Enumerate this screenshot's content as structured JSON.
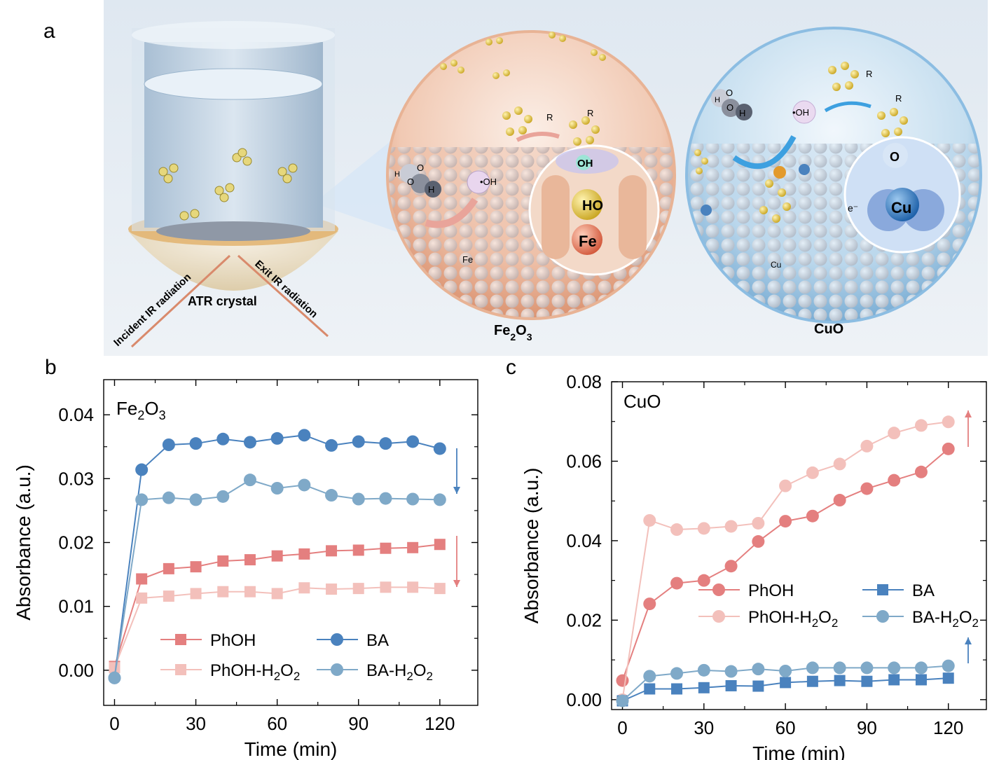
{
  "panel_labels": {
    "a": "a",
    "b": "b",
    "c": "c"
  },
  "illustration": {
    "labels": {
      "incident": "Incident IR radiation",
      "exit": "Exit IR radiation",
      "atr": "ATR crystal",
      "fe2o3_main": "Fe",
      "fe2o3_sub1": "2",
      "fe2o3_mid": "O",
      "fe2o3_sub2": "3",
      "cuo": "CuO",
      "oh_radical_left": "•OH",
      "oh_radical_right": "•OH",
      "oh_bond": "OH",
      "ho_site": "HO",
      "fe_site": "Fe",
      "fe_small": "Fe",
      "o_site": "O",
      "cu_site": "Cu",
      "cu_small": "Cu",
      "electron": "e⁻",
      "r_left": "R",
      "r_mid": "R",
      "r_right_top": "R",
      "r_right": "R",
      "h2o2_h1": "H",
      "h2o2_o1": "O",
      "h2o2_o2": "O",
      "h2o2_h2": "H"
    },
    "colors": {
      "fe_sphere": "#e8a98a",
      "cu_sphere": "#a9cfe8",
      "background": "#e6eef6",
      "cylinder": "#b9cde0",
      "hemisphere": "#ead9b6"
    }
  },
  "chart_data": [
    {
      "type": "line",
      "panel": "b",
      "title_main": "Fe",
      "title_sub1": "2",
      "title_mid": "O",
      "title_sub2": "3",
      "xlabel": "Time (min)",
      "ylabel": "Absorbance (a.u.)",
      "xlim": [
        -4,
        134
      ],
      "ylim": [
        -0.0055,
        0.0455
      ],
      "xticks": [
        0,
        30,
        60,
        90,
        120
      ],
      "xtick_labels": [
        "0",
        "30",
        "60",
        "90",
        "120"
      ],
      "yticks": [
        0,
        0.01,
        0.02,
        0.03,
        0.04
      ],
      "ytick_labels": [
        "0.00",
        "0.01",
        "0.02",
        "0.03",
        "0.04"
      ],
      "x": [
        0,
        10,
        20,
        30,
        40,
        50,
        60,
        70,
        80,
        90,
        100,
        110,
        120
      ],
      "series": [
        {
          "name": "PhOH",
          "marker": "square",
          "color": "#e47f7f",
          "values": [
            0.0006,
            0.0143,
            0.0159,
            0.0162,
            0.0171,
            0.0173,
            0.0179,
            0.0182,
            0.0187,
            0.0188,
            0.0191,
            0.0192,
            0.0197
          ]
        },
        {
          "name": "PhOH-H",
          "name_sub1": "2",
          "name_mid": "O",
          "name_sub2": "2",
          "marker": "square",
          "color": "#f3c0bb",
          "values": [
            0.0004,
            0.0113,
            0.0116,
            0.012,
            0.0123,
            0.0123,
            0.012,
            0.0129,
            0.0127,
            0.0128,
            0.013,
            0.013,
            0.0128
          ]
        },
        {
          "name": "BA",
          "marker": "circle",
          "color": "#4a82be",
          "values": [
            -0.0012,
            0.0314,
            0.0353,
            0.0355,
            0.0362,
            0.0357,
            0.0363,
            0.0368,
            0.0352,
            0.0358,
            0.0355,
            0.0358,
            0.0347
          ]
        },
        {
          "name": "BA-H",
          "name_sub1": "2",
          "name_mid": "O",
          "name_sub2": "2",
          "marker": "circle",
          "color": "#7fa9c8",
          "values": [
            -0.0012,
            0.0267,
            0.027,
            0.0267,
            0.0272,
            0.0298,
            0.0285,
            0.029,
            0.0274,
            0.0268,
            0.0269,
            0.0268,
            0.0267
          ]
        }
      ],
      "arrows": [
        {
          "direction": "down",
          "color": "#4a82be"
        },
        {
          "direction": "down",
          "color": "#e47f7f"
        }
      ],
      "legend_placement": "bottom"
    },
    {
      "type": "line",
      "panel": "c",
      "title_main": "CuO",
      "xlabel": "Time (min)",
      "ylabel": "Absorbance (a.u.)",
      "xlim": [
        -4,
        134
      ],
      "ylim": [
        -0.0025,
        0.08
      ],
      "xticks": [
        0,
        30,
        60,
        90,
        120
      ],
      "xtick_labels": [
        "0",
        "30",
        "60",
        "90",
        "120"
      ],
      "yticks": [
        0,
        0.02,
        0.04,
        0.06,
        0.08
      ],
      "ytick_labels": [
        "0.00",
        "0.02",
        "0.04",
        "0.06",
        "0.08"
      ],
      "x": [
        0,
        10,
        20,
        30,
        40,
        50,
        60,
        70,
        80,
        90,
        100,
        110,
        120
      ],
      "series": [
        {
          "name": "PhOH",
          "marker": "circle",
          "color": "#e47f7f",
          "values": [
            0.0048,
            0.0241,
            0.0293,
            0.03,
            0.0336,
            0.0398,
            0.0449,
            0.0462,
            0.0502,
            0.0531,
            0.0552,
            0.0573,
            0.0631
          ]
        },
        {
          "name": "PhOH-H",
          "name_sub1": "2",
          "name_mid": "O",
          "name_sub2": "2",
          "marker": "circle",
          "color": "#f3c0bb",
          "values": [
            0.0,
            0.0451,
            0.0428,
            0.0431,
            0.0436,
            0.0444,
            0.0538,
            0.0571,
            0.0593,
            0.0638,
            0.0671,
            0.069,
            0.0699
          ]
        },
        {
          "name": "BA",
          "marker": "square",
          "color": "#4a82be",
          "values": [
            -0.0003,
            0.0027,
            0.0027,
            0.003,
            0.0035,
            0.0034,
            0.0043,
            0.0046,
            0.0048,
            0.0046,
            0.005,
            0.005,
            0.0054
          ]
        },
        {
          "name": "BA-H",
          "name_sub1": "2",
          "name_mid": "O",
          "name_sub2": "2",
          "marker": "circle",
          "color": "#7fa9c8",
          "values": [
            -0.0003,
            0.0059,
            0.0066,
            0.0074,
            0.0071,
            0.0077,
            0.0072,
            0.008,
            0.008,
            0.008,
            0.008,
            0.008,
            0.0085
          ]
        }
      ],
      "arrows": [
        {
          "direction": "up",
          "color": "#e47f7f"
        },
        {
          "direction": "up",
          "color": "#4a82be"
        }
      ],
      "legend_placement": "middle-right"
    }
  ]
}
